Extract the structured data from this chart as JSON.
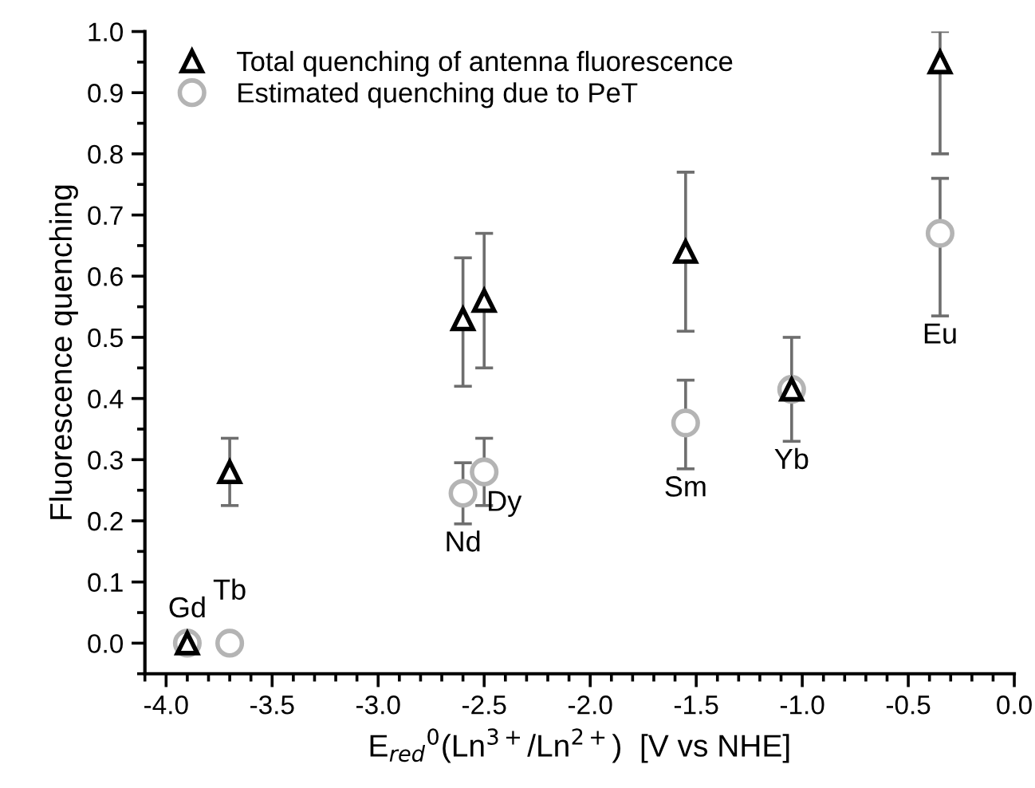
{
  "chart_data": {
    "type": "scatter",
    "ylabel": "Fluorescence quenching",
    "xlabel": "E$_{red}$$^{0}$(Ln$^{3+}$/Ln$^{2+}$)  [V vs NHE]",
    "series": [
      {
        "name": "Total quenching of antenna fluorescence",
        "color": "#000000",
        "marker": "triangle",
        "x": [
          -3.9,
          -3.7,
          -2.6,
          -2.5,
          -1.55,
          -1.05,
          -0.35
        ],
        "values": [
          0,
          0.28,
          0.53,
          0.56,
          0.64,
          0.415,
          0.95
        ],
        "errors": [
          null,
          [
            0.225,
            0.335
          ],
          [
            0.42,
            0.63
          ],
          [
            0.45,
            0.67
          ],
          [
            0.51,
            0.77
          ],
          [
            0.33,
            0.5
          ],
          [
            0.8,
            1.0
          ]
        ]
      },
      {
        "name": "Estimated quenching due to PeT",
        "color": "#b4b4b4",
        "marker": "circle",
        "x": [
          -3.9,
          -3.7,
          -2.6,
          -2.5,
          -1.55,
          -1.05,
          -0.35
        ],
        "values": [
          0,
          0,
          0.245,
          0.28,
          0.36,
          0.415,
          0.67
        ],
        "errors": [
          null,
          null,
          [
            0.195,
            0.295
          ],
          [
            0.225,
            0.335
          ],
          [
            0.285,
            0.43
          ],
          null,
          [
            0.535,
            0.76
          ]
        ]
      }
    ],
    "annotations": [
      {
        "text": "Gd",
        "x": -3.9,
        "y": 0
      },
      {
        "text": "Tb",
        "x": -3.7,
        "y": 0
      },
      {
        "text": "Nd",
        "x": -2.6,
        "y": 0.195
      },
      {
        "text": "Dy",
        "x": -2.5,
        "y": 0.225
      },
      {
        "text": "Sm",
        "x": -1.55,
        "y": 0.285
      },
      {
        "text": "Yb",
        "x": -1.05,
        "y": 0.33
      },
      {
        "text": "Eu",
        "x": -0.35,
        "y": 0.535
      }
    ],
    "xlim": [
      -4.1,
      0
    ],
    "xticks": [
      {
        "value": -4,
        "label": "-4.0"
      },
      {
        "value": -3.5,
        "label": "-3.5"
      },
      {
        "value": -3,
        "label": "-3.0"
      },
      {
        "value": -2.5,
        "label": "-2.5"
      },
      {
        "value": -2,
        "label": "-2.0"
      },
      {
        "value": -1.5,
        "label": "-1.5"
      },
      {
        "value": -1,
        "label": "-1.0"
      },
      {
        "value": -0.5,
        "label": "-0.5"
      },
      {
        "value": 0,
        "label": "0.0"
      }
    ],
    "ylim": [
      -0.05,
      1.0
    ],
    "yticks": [
      {
        "value": 0,
        "label": "0.0"
      },
      0.1,
      0.2,
      0.3,
      0.4,
      0.5,
      0.6,
      0.7,
      0.8,
      0.9,
      {
        "value": 1,
        "label": "1.0"
      }
    ],
    "legend": "top left",
    "grid": false
  }
}
